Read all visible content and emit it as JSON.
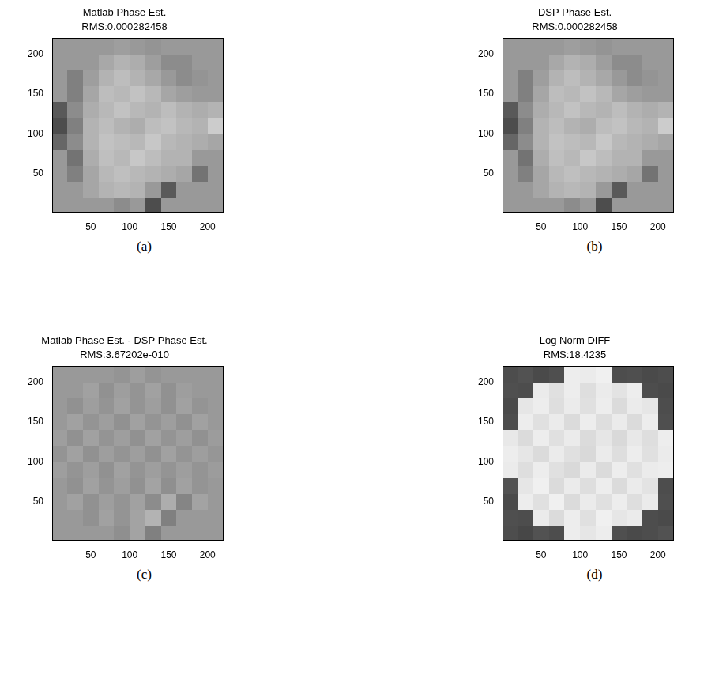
{
  "chart_data": [
    {
      "type": "heatmap",
      "title": "Matlab Phase Est.",
      "subtitle": "RMS:0.000282458",
      "panel_label": "(a)",
      "color": "gray",
      "zlim": [
        0,
        1
      ],
      "xlim": [
        0.5,
        220.5
      ],
      "ylim": [
        0.5,
        220.5
      ],
      "xticks": [
        50,
        100,
        150,
        200
      ],
      "yticks": [
        50,
        100,
        150,
        200
      ],
      "cell_x": [
        10.5,
        30.5,
        50.5,
        70.5,
        90.5,
        110.5,
        130.5,
        150.5,
        170.5,
        190.5,
        210.5
      ],
      "cell_y": [
        10.5,
        30.5,
        50.5,
        70.5,
        90.5,
        110.5,
        130.5,
        150.5,
        170.5,
        190.5,
        210.5
      ],
      "cells": [
        [
          0.6,
          0.6,
          0.6,
          0.6,
          0.55,
          0.6,
          0.3,
          0.6,
          0.6,
          0.6,
          0.6
        ],
        [
          0.6,
          0.6,
          0.65,
          0.7,
          0.72,
          0.7,
          0.6,
          0.35,
          0.6,
          0.6,
          0.6
        ],
        [
          0.6,
          0.5,
          0.65,
          0.72,
          0.75,
          0.72,
          0.7,
          0.68,
          0.65,
          0.45,
          0.6
        ],
        [
          0.6,
          0.45,
          0.68,
          0.75,
          0.72,
          0.78,
          0.74,
          0.7,
          0.7,
          0.6,
          0.6
        ],
        [
          0.4,
          0.55,
          0.7,
          0.76,
          0.74,
          0.72,
          0.78,
          0.72,
          0.7,
          0.68,
          0.65
        ],
        [
          0.3,
          0.5,
          0.7,
          0.74,
          0.7,
          0.68,
          0.74,
          0.76,
          0.72,
          0.7,
          0.8
        ],
        [
          0.35,
          0.55,
          0.68,
          0.72,
          0.76,
          0.72,
          0.7,
          0.74,
          0.7,
          0.68,
          0.7
        ],
        [
          0.6,
          0.5,
          0.65,
          0.74,
          0.72,
          0.76,
          0.72,
          0.65,
          0.62,
          0.6,
          0.6
        ],
        [
          0.6,
          0.5,
          0.62,
          0.7,
          0.74,
          0.7,
          0.66,
          0.6,
          0.55,
          0.58,
          0.6
        ],
        [
          0.6,
          0.6,
          0.6,
          0.66,
          0.7,
          0.68,
          0.62,
          0.55,
          0.55,
          0.6,
          0.6
        ],
        [
          0.6,
          0.6,
          0.6,
          0.6,
          0.62,
          0.6,
          0.58,
          0.6,
          0.6,
          0.6,
          0.6
        ]
      ]
    },
    {
      "type": "heatmap",
      "title": "DSP Phase Est.",
      "subtitle": "RMS:0.000282458",
      "panel_label": "(b)",
      "color": "gray",
      "zlim": [
        0,
        1
      ],
      "xlim": [
        0.5,
        220.5
      ],
      "ylim": [
        0.5,
        220.5
      ],
      "xticks": [
        50,
        100,
        150,
        200
      ],
      "yticks": [
        50,
        100,
        150,
        200
      ],
      "cell_x": [
        10.5,
        30.5,
        50.5,
        70.5,
        90.5,
        110.5,
        130.5,
        150.5,
        170.5,
        190.5,
        210.5
      ],
      "cell_y": [
        10.5,
        30.5,
        50.5,
        70.5,
        90.5,
        110.5,
        130.5,
        150.5,
        170.5,
        190.5,
        210.5
      ],
      "cells": [
        [
          0.6,
          0.6,
          0.6,
          0.6,
          0.55,
          0.6,
          0.3,
          0.6,
          0.6,
          0.6,
          0.6
        ],
        [
          0.6,
          0.6,
          0.65,
          0.7,
          0.72,
          0.7,
          0.6,
          0.35,
          0.6,
          0.6,
          0.6
        ],
        [
          0.6,
          0.5,
          0.65,
          0.72,
          0.75,
          0.72,
          0.7,
          0.68,
          0.65,
          0.45,
          0.6
        ],
        [
          0.6,
          0.45,
          0.68,
          0.75,
          0.72,
          0.78,
          0.74,
          0.7,
          0.7,
          0.6,
          0.6
        ],
        [
          0.4,
          0.55,
          0.7,
          0.76,
          0.74,
          0.72,
          0.78,
          0.72,
          0.7,
          0.68,
          0.65
        ],
        [
          0.3,
          0.5,
          0.7,
          0.74,
          0.7,
          0.68,
          0.74,
          0.76,
          0.72,
          0.7,
          0.8
        ],
        [
          0.35,
          0.55,
          0.68,
          0.72,
          0.76,
          0.72,
          0.7,
          0.74,
          0.7,
          0.68,
          0.7
        ],
        [
          0.6,
          0.5,
          0.65,
          0.74,
          0.72,
          0.76,
          0.72,
          0.65,
          0.62,
          0.6,
          0.6
        ],
        [
          0.6,
          0.5,
          0.62,
          0.7,
          0.74,
          0.7,
          0.66,
          0.6,
          0.55,
          0.58,
          0.6
        ],
        [
          0.6,
          0.6,
          0.6,
          0.66,
          0.7,
          0.68,
          0.62,
          0.55,
          0.55,
          0.6,
          0.6
        ],
        [
          0.6,
          0.6,
          0.6,
          0.6,
          0.62,
          0.6,
          0.58,
          0.6,
          0.6,
          0.6,
          0.6
        ]
      ]
    },
    {
      "type": "heatmap",
      "title": "Matlab Phase Est. - DSP Phase Est.",
      "subtitle": "RMS:3.67202e-010",
      "panel_label": "(c)",
      "color": "gray",
      "zlim": [
        0,
        1
      ],
      "xlim": [
        0.5,
        220.5
      ],
      "ylim": [
        0.5,
        220.5
      ],
      "xticks": [
        50,
        100,
        150,
        200
      ],
      "yticks": [
        50,
        100,
        150,
        200
      ],
      "cell_x": [
        10.5,
        30.5,
        50.5,
        70.5,
        90.5,
        110.5,
        130.5,
        150.5,
        170.5,
        190.5,
        210.5
      ],
      "cell_y": [
        10.5,
        30.5,
        50.5,
        70.5,
        90.5,
        110.5,
        130.5,
        150.5,
        170.5,
        190.5,
        210.5
      ],
      "cells": [
        [
          0.6,
          0.6,
          0.6,
          0.6,
          0.56,
          0.64,
          0.5,
          0.6,
          0.6,
          0.6,
          0.6
        ],
        [
          0.6,
          0.6,
          0.57,
          0.63,
          0.58,
          0.64,
          0.7,
          0.5,
          0.6,
          0.6,
          0.6
        ],
        [
          0.6,
          0.63,
          0.57,
          0.62,
          0.58,
          0.63,
          0.55,
          0.68,
          0.52,
          0.64,
          0.6
        ],
        [
          0.6,
          0.57,
          0.63,
          0.58,
          0.62,
          0.57,
          0.64,
          0.56,
          0.63,
          0.58,
          0.6
        ],
        [
          0.62,
          0.58,
          0.62,
          0.57,
          0.63,
          0.58,
          0.62,
          0.58,
          0.62,
          0.58,
          0.61
        ],
        [
          0.58,
          0.63,
          0.57,
          0.62,
          0.58,
          0.62,
          0.57,
          0.63,
          0.58,
          0.62,
          0.59
        ],
        [
          0.62,
          0.57,
          0.63,
          0.58,
          0.62,
          0.57,
          0.63,
          0.58,
          0.62,
          0.57,
          0.61
        ],
        [
          0.6,
          0.63,
          0.58,
          0.62,
          0.57,
          0.63,
          0.58,
          0.62,
          0.57,
          0.63,
          0.6
        ],
        [
          0.6,
          0.57,
          0.62,
          0.58,
          0.63,
          0.58,
          0.62,
          0.57,
          0.63,
          0.58,
          0.6
        ],
        [
          0.6,
          0.6,
          0.63,
          0.57,
          0.62,
          0.58,
          0.63,
          0.57,
          0.62,
          0.6,
          0.6
        ],
        [
          0.6,
          0.6,
          0.6,
          0.6,
          0.58,
          0.62,
          0.58,
          0.6,
          0.6,
          0.6,
          0.6
        ]
      ]
    },
    {
      "type": "heatmap",
      "title": "Log Norm DIFF",
      "subtitle": "RMS:18.4235",
      "panel_label": "(d)",
      "color": "gray",
      "zlim": [
        0,
        1
      ],
      "xlim": [
        0.5,
        220.5
      ],
      "ylim": [
        0.5,
        220.5
      ],
      "xticks": [
        50,
        100,
        150,
        200
      ],
      "yticks": [
        50,
        100,
        150,
        200
      ],
      "cell_x": [
        10.5,
        30.5,
        50.5,
        70.5,
        90.5,
        110.5,
        130.5,
        150.5,
        170.5,
        190.5,
        210.5
      ],
      "cell_y": [
        10.5,
        30.5,
        50.5,
        70.5,
        90.5,
        110.5,
        130.5,
        150.5,
        170.5,
        190.5,
        210.5
      ],
      "cells": [
        [
          0.3,
          0.28,
          0.32,
          0.3,
          0.93,
          0.9,
          0.93,
          0.31,
          0.29,
          0.3,
          0.32
        ],
        [
          0.31,
          0.3,
          0.92,
          0.86,
          0.93,
          0.88,
          0.94,
          0.9,
          0.92,
          0.3,
          0.29
        ],
        [
          0.29,
          0.93,
          0.88,
          0.94,
          0.86,
          0.92,
          0.88,
          0.93,
          0.87,
          0.92,
          0.31
        ],
        [
          0.32,
          0.9,
          0.94,
          0.86,
          0.92,
          0.87,
          0.93,
          0.86,
          0.92,
          0.89,
          0.3
        ],
        [
          0.92,
          0.87,
          0.93,
          0.88,
          0.85,
          0.92,
          0.86,
          0.93,
          0.88,
          0.92,
          0.93
        ],
        [
          0.93,
          0.9,
          0.86,
          0.92,
          0.88,
          0.85,
          0.92,
          0.87,
          0.93,
          0.88,
          0.92
        ],
        [
          0.91,
          0.86,
          0.93,
          0.88,
          0.92,
          0.86,
          0.9,
          0.85,
          0.91,
          0.87,
          0.93
        ],
        [
          0.3,
          0.93,
          0.88,
          0.92,
          0.86,
          0.93,
          0.87,
          0.92,
          0.86,
          0.93,
          0.31
        ],
        [
          0.29,
          0.9,
          0.93,
          0.87,
          0.92,
          0.88,
          0.93,
          0.86,
          0.92,
          0.9,
          0.3
        ],
        [
          0.31,
          0.3,
          0.92,
          0.88,
          0.93,
          0.87,
          0.92,
          0.89,
          0.93,
          0.3,
          0.29
        ],
        [
          0.3,
          0.32,
          0.29,
          0.31,
          0.93,
          0.92,
          0.94,
          0.3,
          0.31,
          0.29,
          0.3
        ]
      ]
    }
  ]
}
